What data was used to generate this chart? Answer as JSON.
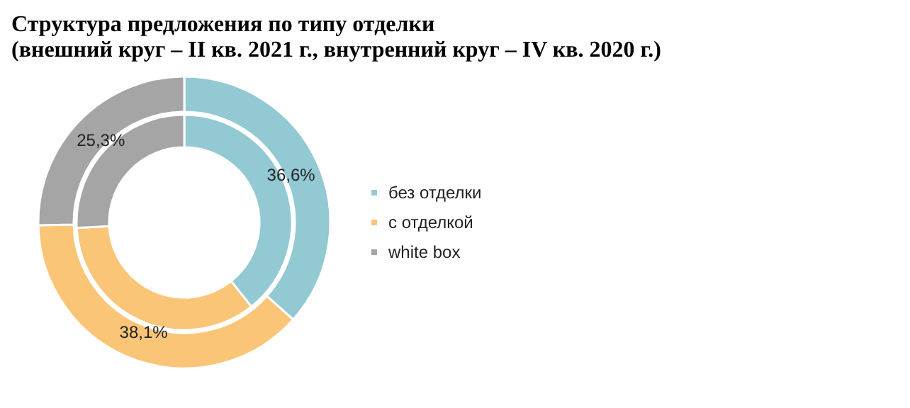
{
  "chart_data": {
    "type": "donut",
    "title": "Структура  предложения по типу отделки",
    "subtitle": "(внешний круг – II кв. 2021 г., внутренний круг – IV кв. 2020 г.)",
    "categories": [
      "без отделки",
      "с отделкой",
      "white box"
    ],
    "colors": [
      "#92c9d3",
      "#fbc577",
      "#a5a5a5"
    ],
    "series": [
      {
        "values": [
          36.6,
          38.1,
          25.3
        ],
        "value_labels": [
          "36,6%",
          "38,1%",
          "25,3%"
        ]
      },
      {
        "values": [
          39.3,
          34.9,
          25.8
        ]
      }
    ],
    "legend": "right"
  }
}
